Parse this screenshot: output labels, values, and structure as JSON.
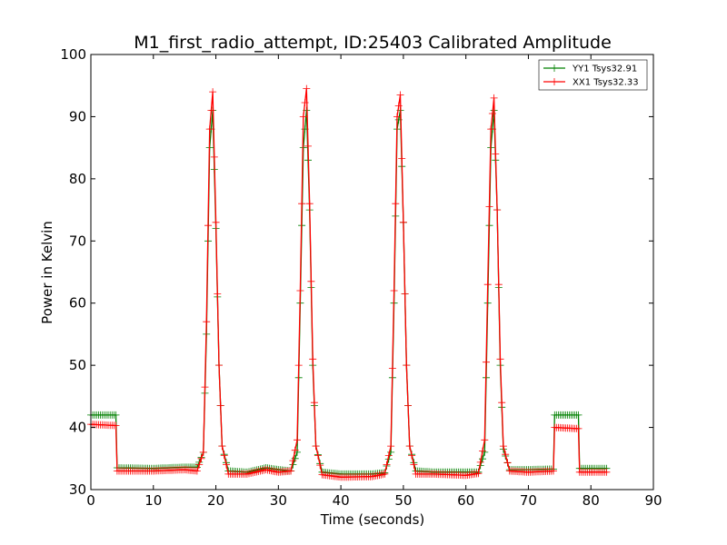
{
  "chart_data": {
    "type": "line",
    "title": "M1_first_radio_attempt, ID:25403 Calibrated Amplitude",
    "xlabel": "Time (seconds)",
    "ylabel": "Power in Kelvin",
    "xlim": [
      0,
      90
    ],
    "ylim": [
      30,
      100
    ],
    "xticks": [
      "0",
      "10",
      "20",
      "30",
      "40",
      "50",
      "60",
      "70",
      "80",
      "90"
    ],
    "yticks": [
      "30",
      "40",
      "50",
      "60",
      "70",
      "80",
      "90",
      "100"
    ],
    "grid": false,
    "legend": "top-right",
    "marker": "+",
    "series": [
      {
        "name": "YY1 Tsys32.91",
        "color": "#008000",
        "x": [
          0,
          4,
          4.2,
          10,
          15,
          17,
          18,
          18.5,
          19,
          19.5,
          20,
          20.5,
          21,
          22,
          25,
          28,
          30,
          32,
          33,
          33.5,
          34,
          34.5,
          35,
          35.5,
          36,
          37,
          40,
          45,
          47,
          48,
          48.5,
          49,
          49.5,
          50,
          50.5,
          51,
          52,
          55,
          60,
          62,
          63,
          63.5,
          64,
          64.5,
          65,
          65.5,
          66,
          67,
          70,
          74,
          74.2,
          78,
          78.2,
          82.5
        ],
        "values": [
          42,
          42,
          33.5,
          33.4,
          33.6,
          33.6,
          36,
          55,
          85,
          91,
          72,
          50,
          37,
          33,
          32.8,
          33.5,
          33.2,
          33,
          36,
          60,
          85,
          91,
          75,
          50,
          37,
          32.8,
          32.5,
          32.5,
          32.7,
          36,
          60,
          88,
          91,
          73,
          50,
          37,
          33,
          32.8,
          32.8,
          32.8,
          36,
          60,
          85,
          91,
          75,
          50,
          36.5,
          33.2,
          33.2,
          33.3,
          42,
          42,
          33.4,
          33.4
        ]
      },
      {
        "name": "XX1 Tsys32.33",
        "color": "#ff0000",
        "x": [
          0,
          4,
          4.2,
          10,
          15,
          17,
          18,
          18.5,
          19,
          19.5,
          20,
          20.5,
          21,
          22,
          25,
          28,
          30,
          32,
          33,
          33.5,
          34,
          34.5,
          35,
          35.5,
          36,
          37,
          40,
          45,
          47,
          48,
          48.5,
          49,
          49.5,
          50,
          50.5,
          51,
          52,
          55,
          60,
          62,
          63,
          63.5,
          64,
          64.5,
          65,
          65.5,
          66,
          67,
          70,
          74,
          74.2,
          78,
          78.2,
          82.5
        ],
        "values": [
          40.5,
          40.3,
          33,
          33,
          33.2,
          33,
          36,
          57,
          88,
          94,
          73,
          50,
          37,
          32.5,
          32.5,
          33.2,
          32.8,
          33,
          38,
          62,
          90,
          94.5,
          76,
          51,
          37,
          32.4,
          32,
          32.1,
          32.5,
          37,
          62,
          90,
          93.5,
          73,
          50,
          37,
          32.5,
          32.5,
          32.3,
          32.6,
          38,
          63,
          88,
          93,
          75,
          51,
          37,
          33,
          32.8,
          33,
          40,
          39.8,
          32.8,
          32.8
        ]
      }
    ]
  }
}
